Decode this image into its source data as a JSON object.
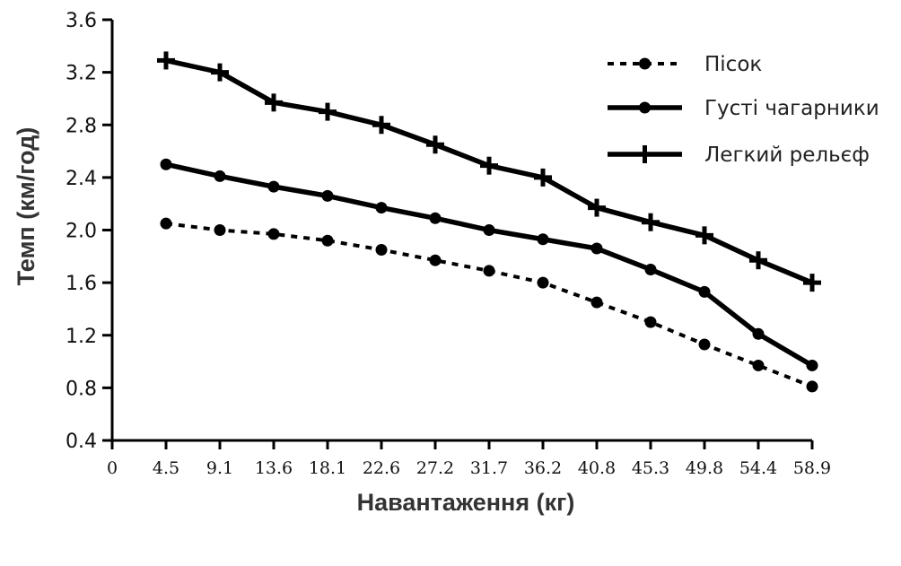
{
  "chart_data": {
    "type": "line",
    "title": "",
    "xlabel": "Навантаження (кг)",
    "ylabel": "Темп (км/год)",
    "x_ticks": [
      "0",
      "4.5",
      "9.1",
      "13.6",
      "18.1",
      "22.6",
      "27.2",
      "31.7",
      "36.2",
      "40.8",
      "45.3",
      "49.8",
      "54.4",
      "58.9"
    ],
    "categories": [
      "4.5",
      "9.1",
      "13.6",
      "18.1",
      "22.6",
      "27.2",
      "31.7",
      "36.2",
      "40.8",
      "45.3",
      "49.8",
      "54.4",
      "58.9"
    ],
    "y_ticks": [
      "0.4",
      "0.8",
      "1.2",
      "1.6",
      "2.0",
      "2.4",
      "2.8",
      "3.2",
      "3.6"
    ],
    "ylim": [
      0.4,
      3.6
    ],
    "grid": false,
    "legend_position": "top-right",
    "series": [
      {
        "name": "Пісок",
        "style": "dotted",
        "marker": "dot",
        "color": "#000000",
        "values": [
          2.05,
          2.0,
          1.97,
          1.92,
          1.85,
          1.77,
          1.69,
          1.6,
          1.45,
          1.3,
          1.13,
          0.97,
          0.81
        ]
      },
      {
        "name": "Густі чагарники",
        "style": "solid",
        "marker": "dot",
        "color": "#000000",
        "values": [
          2.5,
          2.41,
          2.33,
          2.26,
          2.17,
          2.09,
          2.0,
          1.93,
          1.86,
          1.7,
          1.53,
          1.21,
          0.97
        ]
      },
      {
        "name": "Легкий рельєф",
        "style": "solid",
        "marker": "plus",
        "color": "#000000",
        "values": [
          3.29,
          3.2,
          2.97,
          2.9,
          2.8,
          2.65,
          2.49,
          2.4,
          2.17,
          2.06,
          1.96,
          1.77,
          1.6
        ]
      }
    ]
  }
}
